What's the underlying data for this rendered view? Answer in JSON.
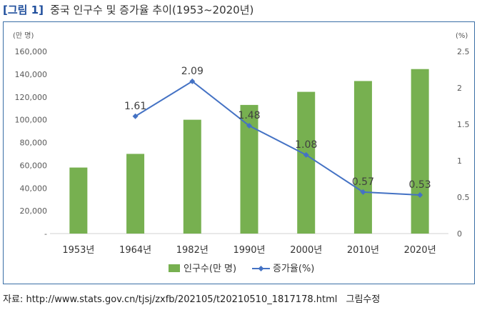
{
  "figure": {
    "tag": "[그림 1]",
    "title": "중국 인구수 및 증가율 추이(1953~2020년)"
  },
  "source": {
    "label": "자료:",
    "url": "http://www.stats.gov.cn/tjsj/zxfb/202105/t20210510_1817178.html",
    "credit": "그림수정"
  },
  "chart_data": {
    "type": "bar",
    "categories": [
      "1953년",
      "1964년",
      "1982년",
      "1990년",
      "2000년",
      "2010년",
      "2020년"
    ],
    "series": [
      {
        "name": "인구수(만 명)",
        "type": "bar",
        "axis": "left",
        "color": "#77b050",
        "values": [
          58000,
          70000,
          100000,
          113000,
          124500,
          134000,
          144500
        ]
      },
      {
        "name": "증가율(%)",
        "type": "line",
        "axis": "right",
        "color": "#4472c4",
        "values": [
          null,
          1.61,
          2.09,
          1.48,
          1.08,
          0.57,
          0.53
        ],
        "labels": [
          "",
          "1.61",
          "2.09",
          "1.48",
          "1.08",
          "0.57",
          "0.53"
        ]
      }
    ],
    "y_left": {
      "unit": "(만 명)",
      "range": [
        0,
        160000
      ],
      "ticks": [
        0,
        20000,
        40000,
        60000,
        80000,
        100000,
        120000,
        140000,
        160000
      ],
      "tick_labels": [
        "-",
        "20,000",
        "40,000",
        "60,000",
        "80,000",
        "100,000",
        "120,000",
        "140,000",
        "160,000"
      ]
    },
    "y_right": {
      "unit": "(%)",
      "range": [
        0,
        2.5
      ],
      "ticks": [
        0,
        0.5,
        1,
        1.5,
        2,
        2.5
      ],
      "tick_labels": [
        "0",
        "0.5",
        "1",
        "1.5",
        "2",
        "2.5"
      ]
    },
    "grid": false,
    "legend_position": "bottom"
  }
}
